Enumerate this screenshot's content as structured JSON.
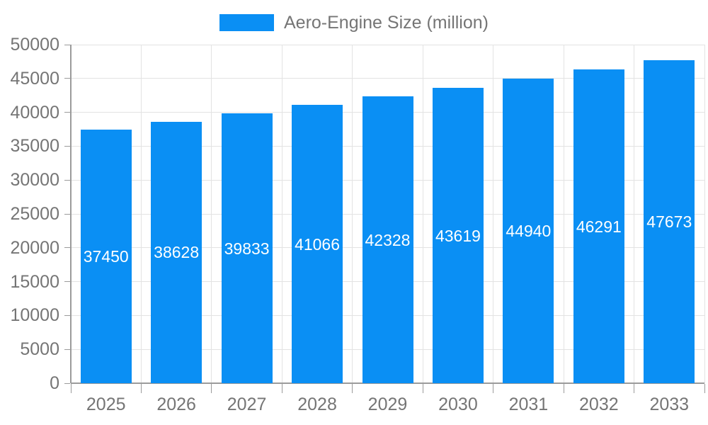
{
  "chart_data": {
    "type": "bar",
    "title": "",
    "legend": "Aero-Engine Size (million)",
    "legend_position": "top-center",
    "categories": [
      "2025",
      "2026",
      "2027",
      "2028",
      "2029",
      "2030",
      "2031",
      "2032",
      "2033"
    ],
    "series": [
      {
        "name": "Aero-Engine Size (million)",
        "values": [
          37450,
          38628,
          39833,
          41066,
          42328,
          43619,
          44940,
          46291,
          47673
        ]
      }
    ],
    "value_labels": [
      "37450",
      "38628",
      "39833",
      "41066",
      "42328",
      "43619",
      "44940",
      "46291",
      "47673"
    ],
    "xlabel": "",
    "ylabel": "",
    "ylim": [
      0,
      50000
    ],
    "ytick_step": 5000,
    "yticks": [
      0,
      5000,
      10000,
      15000,
      20000,
      25000,
      30000,
      35000,
      40000,
      45000,
      50000
    ],
    "grid": true,
    "colors": {
      "bar": "#0a8ff4",
      "bar_value_text": "#ffffff",
      "axis_text": "#757575",
      "legend_text": "#757575",
      "gridline": "#e3e3e3",
      "axis_line": "#9b9b9b",
      "background": "#ffffff"
    }
  }
}
